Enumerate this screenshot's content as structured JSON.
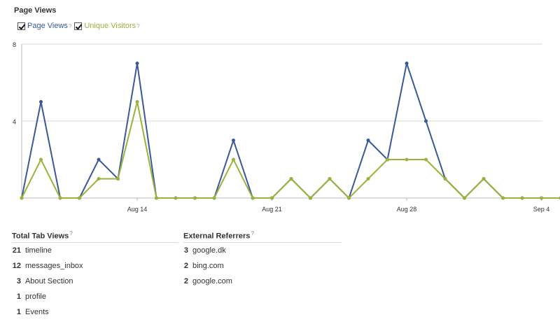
{
  "title": "Page Views",
  "help_mark": "?",
  "legend": [
    {
      "label": "Page Views",
      "color": "#3b5998",
      "checked": true
    },
    {
      "label": "Unique Visitors",
      "color": "#99b33d",
      "checked": true
    }
  ],
  "chart_data": {
    "type": "line",
    "x": [
      "Aug 8",
      "Aug 9",
      "Aug 10",
      "Aug 11",
      "Aug 12",
      "Aug 13",
      "Aug 14",
      "Aug 15",
      "Aug 16",
      "Aug 17",
      "Aug 18",
      "Aug 19",
      "Aug 20",
      "Aug 21",
      "Aug 22",
      "Aug 23",
      "Aug 24",
      "Aug 25",
      "Aug 26",
      "Aug 27",
      "Aug 28",
      "Aug 29",
      "Aug 30",
      "Aug 31",
      "Sep 1",
      "Sep 2",
      "Sep 3",
      "Sep 4",
      "Sep 5"
    ],
    "series": [
      {
        "name": "Page Views",
        "color": "#3b5998",
        "values": [
          0,
          5,
          0,
          0,
          2,
          1,
          7,
          0,
          0,
          0,
          0,
          3,
          0,
          0,
          1,
          0,
          1,
          0,
          3,
          2,
          7,
          4,
          1,
          0,
          1,
          0,
          0,
          0,
          0
        ]
      },
      {
        "name": "Unique Visitors",
        "color": "#99b33d",
        "values": [
          0,
          2,
          0,
          0,
          1,
          1,
          5,
          0,
          0,
          0,
          0,
          2,
          0,
          0,
          1,
          0,
          1,
          0,
          1,
          2,
          2,
          2,
          1,
          0,
          1,
          0,
          0,
          0,
          0
        ]
      }
    ],
    "y_ticks": [
      4,
      8
    ],
    "x_tick_labels": [
      "Aug 14",
      "Aug 21",
      "Aug 28",
      "Sep 4"
    ],
    "ylim": [
      0,
      8
    ],
    "grid": true
  },
  "tab_views": {
    "title": "Total Tab Views",
    "rows": [
      {
        "count": "21",
        "label": "timeline"
      },
      {
        "count": "12",
        "label": "messages_inbox"
      },
      {
        "count": "3",
        "label": "About Section"
      },
      {
        "count": "1",
        "label": "profile"
      },
      {
        "count": "1",
        "label": "Events"
      }
    ]
  },
  "referrers": {
    "title": "External Referrers",
    "rows": [
      {
        "count": "3",
        "label": "google.dk"
      },
      {
        "count": "2",
        "label": "bing.com"
      },
      {
        "count": "2",
        "label": "google.com"
      }
    ]
  }
}
